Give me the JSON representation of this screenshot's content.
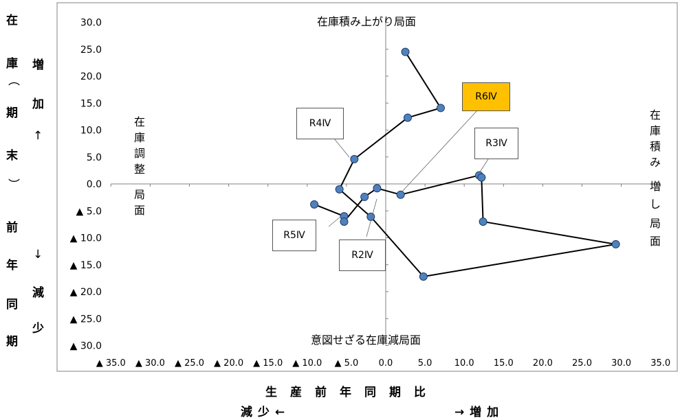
{
  "y_axis_title": {
    "main": [
      "在",
      "庫",
      "︵",
      "期",
      "末",
      "︶",
      "前",
      "年",
      "同",
      "期"
    ],
    "increase": [
      "増",
      "加",
      "↑"
    ],
    "decrease": [
      "↓",
      "減",
      "少"
    ]
  },
  "x_axis_title": {
    "main": "生　産　前　年　同　期　比",
    "left": "減 少 ←",
    "right": "→ 増 加"
  },
  "phases": {
    "top": "在庫積み上がり局面",
    "bottom": "意図せざる在庫減局面",
    "left": [
      "在",
      "庫",
      "調",
      "整",
      "局",
      "面"
    ],
    "right": [
      "在",
      "庫",
      "積",
      "み",
      "増",
      "し",
      "局",
      "面"
    ]
  },
  "callouts": [
    {
      "label": "R4Ⅳ",
      "highlight": false
    },
    {
      "label": "R6Ⅳ",
      "highlight": true
    },
    {
      "label": "R3Ⅳ",
      "highlight": false
    },
    {
      "label": "R5Ⅳ",
      "highlight": false
    },
    {
      "label": "R2Ⅳ",
      "highlight": false
    }
  ],
  "colors": {
    "point_fill": "#4f81bd",
    "line": "#000000",
    "axis": "#808080",
    "highlight": "#ffc000"
  },
  "chart_data": {
    "type": "scatter",
    "title": "",
    "xlabel": "生産前年同期比",
    "ylabel": "在庫（期末）前年同期比",
    "xlim": [
      -35,
      35
    ],
    "ylim": [
      -30,
      30
    ],
    "x_ticks": [
      "▲ 35.0",
      "▲ 30.0",
      "▲ 25.0",
      "▲ 20.0",
      "▲ 15.0",
      "▲ 10.0",
      "▲ 5.0",
      "0.0",
      "5.0",
      "10.0",
      "15.0",
      "20.0",
      "25.0",
      "30.0",
      "35.0"
    ],
    "y_ticks": [
      "30.0",
      "25.0",
      "20.0",
      "15.0",
      "10.0",
      "5.0",
      "0.0",
      "▲ 5.0",
      "▲ 10.0",
      "▲ 15.0",
      "▲ 20.0",
      "▲ 25.0",
      "▲ 30.0"
    ],
    "series": [
      {
        "points": [
          [
            -9.1,
            -3.8
          ],
          [
            -5.3,
            -6.0
          ],
          [
            -5.3,
            -7.0
          ],
          [
            -2.7,
            -2.4
          ],
          [
            -1.1,
            -0.8
          ],
          [
            1.9,
            -2.0
          ],
          [
            11.9,
            1.6
          ],
          [
            12.2,
            1.2
          ],
          [
            12.4,
            -7.0
          ],
          [
            29.3,
            -11.2
          ],
          [
            4.8,
            -17.2
          ],
          [
            -1.9,
            -6.1
          ],
          [
            -5.9,
            -1.0
          ],
          [
            -4.0,
            4.6
          ],
          [
            2.8,
            12.3
          ],
          [
            7.0,
            14.1
          ],
          [
            2.5,
            24.5
          ]
        ]
      }
    ]
  }
}
